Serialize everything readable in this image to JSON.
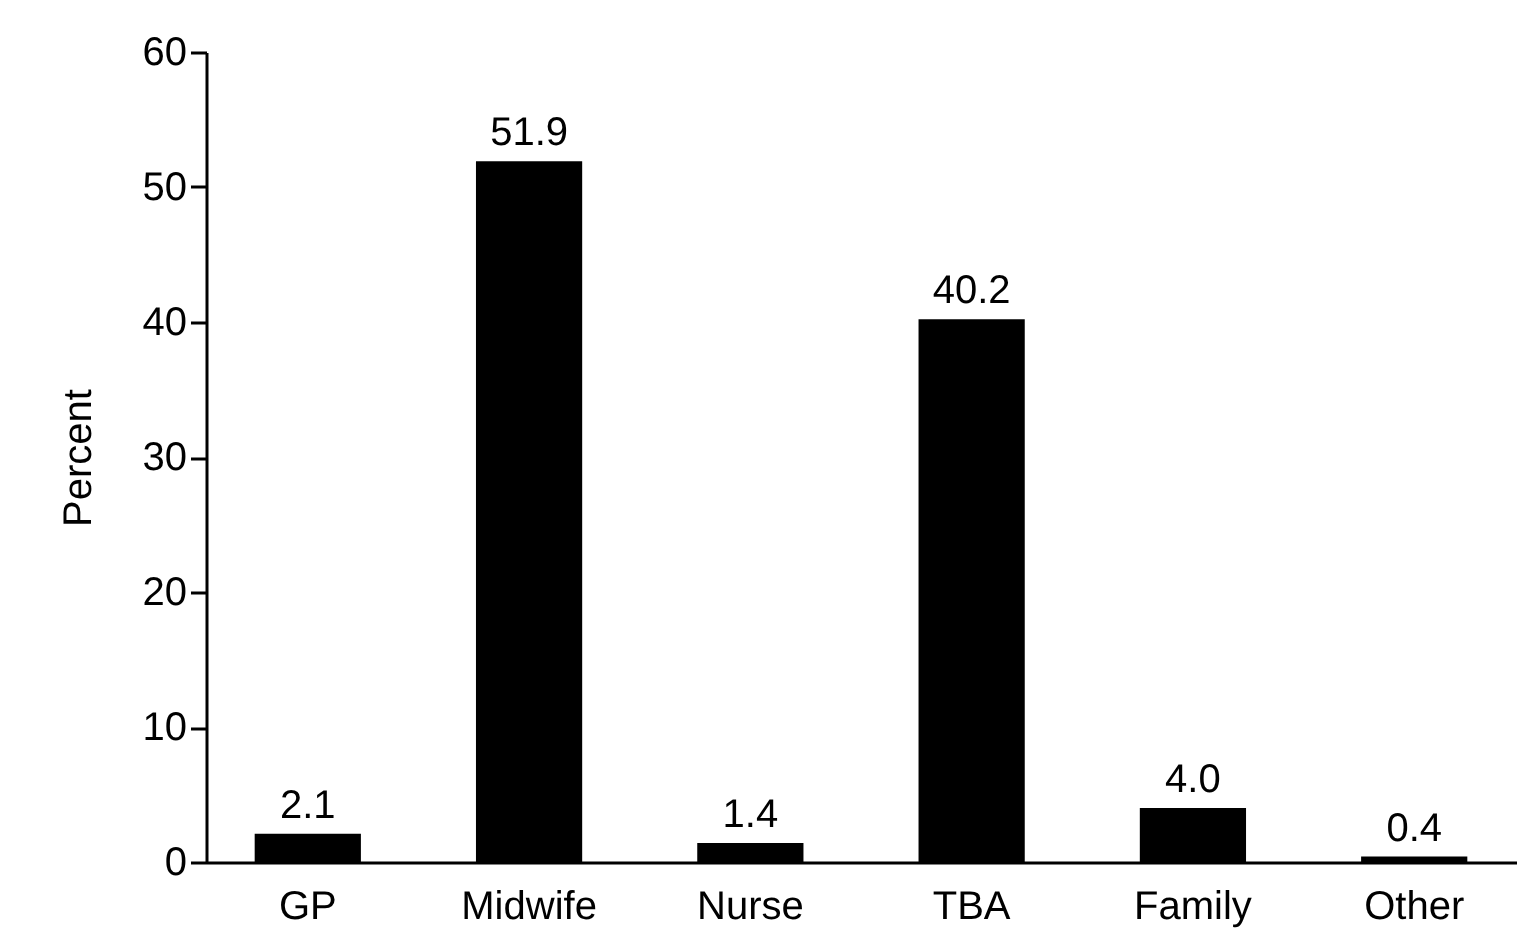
{
  "chart_data": {
    "type": "bar",
    "ylabel": "Percent",
    "categories": [
      "GP",
      "Midwife",
      "Nurse",
      "TBA",
      "Family",
      "Other"
    ],
    "values": [
      2.1,
      51.9,
      1.4,
      40.2,
      4.0,
      0.4
    ],
    "value_labels": [
      "2.1",
      "51.9",
      "1.4",
      "40.2",
      "4.0",
      "0.4"
    ],
    "color": "#000000",
    "ylim": [
      0,
      60
    ],
    "yticks": [
      0,
      10,
      20,
      30,
      40,
      50,
      60
    ],
    "grid": false
  }
}
